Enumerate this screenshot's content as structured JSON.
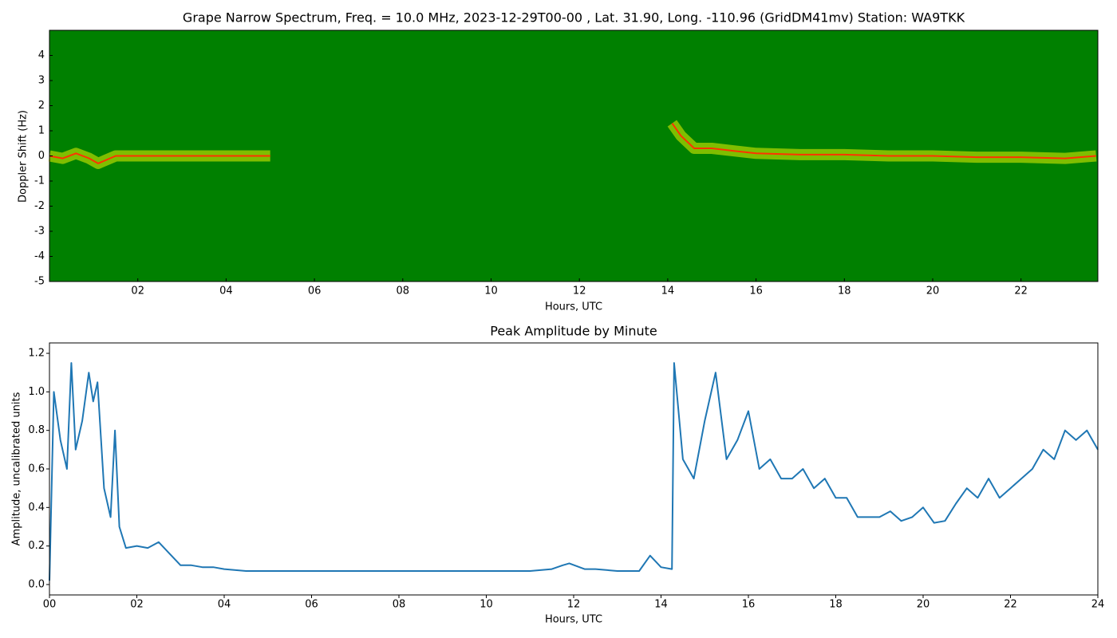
{
  "chart_data": [
    {
      "type": "spectrogram",
      "title": "Grape Narrow Spectrum, Freq. = 10.0 MHz, 2023-12-29T00-00 , Lat.  31.90, Long. -110.96 (GridDM41mv) Station: WA9TKK",
      "xlabel": "Hours, UTC",
      "ylabel": "Doppler Shift (Hz)",
      "background_color": "#008000",
      "xlim": [
        0,
        23.74
      ],
      "ylim": [
        -5,
        5
      ],
      "xticks": [
        {
          "value": 2,
          "label": "02"
        },
        {
          "value": 4,
          "label": "04"
        },
        {
          "value": 6,
          "label": "06"
        },
        {
          "value": 8,
          "label": "08"
        },
        10,
        12,
        14,
        16,
        18,
        20,
        22
      ],
      "yticks": [
        -5,
        -4,
        -3,
        -2,
        -1,
        0,
        1,
        2,
        3,
        4
      ],
      "series": [
        {
          "color": "#ff3300",
          "x": [
            0,
            0.3,
            0.6,
            0.9,
            1.1,
            1.5,
            3,
            5,
            9,
            14.1,
            14.3,
            14.6,
            15,
            15.5,
            16,
            17,
            18,
            19,
            20,
            21,
            22,
            23,
            23.7
          ],
          "values": [
            0,
            -0.1,
            0.1,
            -0.1,
            -0.3,
            0,
            0,
            0,
            null,
            1.3,
            0.8,
            0.3,
            0.3,
            0.2,
            0.1,
            0.05,
            0.05,
            0,
            0,
            -0.05,
            -0.05,
            -0.1,
            0
          ]
        }
      ]
    },
    {
      "type": "line",
      "title": "Peak Amplitude by Minute",
      "xlabel": "Hours, UTC",
      "ylabel": "Amplitude, uncalibrated units",
      "xlim": [
        0,
        24
      ],
      "ylim": [
        -0.054,
        1.254
      ],
      "xticks": [
        {
          "value": 0,
          "label": "00"
        },
        {
          "value": 2,
          "label": "02"
        },
        {
          "value": 4,
          "label": "04"
        },
        {
          "value": 6,
          "label": "06"
        },
        {
          "value": 8,
          "label": "08"
        },
        10,
        12,
        14,
        16,
        18,
        20,
        22,
        24
      ],
      "yticks": [
        {
          "value": 0,
          "label": "0.0"
        },
        0.2,
        0.4,
        0.6,
        0.8,
        {
          "value": 1,
          "label": "1.0"
        },
        1.2
      ],
      "series": [
        {
          "color": "#1f77b4",
          "x": [
            0,
            0.1,
            0.25,
            0.4,
            0.5,
            0.6,
            0.75,
            0.9,
            1.0,
            1.1,
            1.25,
            1.4,
            1.5,
            1.6,
            1.75,
            2.0,
            2.25,
            2.5,
            2.75,
            3.0,
            3.25,
            3.5,
            3.75,
            4.0,
            4.5,
            5,
            5.5,
            6,
            6.5,
            7,
            7.5,
            8,
            8.5,
            9,
            9.5,
            10,
            10.5,
            11,
            11.5,
            11.75,
            11.9,
            12.25,
            12.5,
            13,
            13.5,
            13.75,
            14.0,
            14.25,
            14.3,
            14.5,
            14.75,
            15.0,
            15.25,
            15.5,
            15.75,
            16.0,
            16.25,
            16.5,
            16.75,
            17.0,
            17.25,
            17.5,
            17.75,
            18.0,
            18.25,
            18.5,
            18.75,
            19.0,
            19.25,
            19.5,
            19.75,
            20.0,
            20.25,
            20.5,
            20.75,
            21.0,
            21.25,
            21.5,
            21.75,
            22.0,
            22.25,
            22.5,
            22.75,
            23.0,
            23.25,
            23.5,
            23.75,
            24.0
          ],
          "values": [
            0.02,
            1.0,
            0.75,
            0.6,
            1.15,
            0.7,
            0.85,
            1.1,
            0.95,
            1.05,
            0.5,
            0.35,
            0.8,
            0.3,
            0.19,
            0.2,
            0.19,
            0.22,
            0.16,
            0.1,
            0.1,
            0.09,
            0.09,
            0.08,
            0.07,
            0.07,
            0.07,
            0.07,
            0.07,
            0.07,
            0.07,
            0.07,
            0.07,
            0.07,
            0.07,
            0.07,
            0.07,
            0.07,
            0.08,
            0.1,
            0.11,
            0.08,
            0.08,
            0.07,
            0.07,
            0.15,
            0.09,
            0.08,
            1.15,
            0.65,
            0.55,
            0.85,
            1.1,
            0.65,
            0.75,
            0.9,
            0.6,
            0.65,
            0.55,
            0.55,
            0.6,
            0.5,
            0.55,
            0.45,
            0.45,
            0.35,
            0.35,
            0.35,
            0.38,
            0.33,
            0.35,
            0.4,
            0.32,
            0.33,
            0.42,
            0.5,
            0.45,
            0.55,
            0.45,
            0.5,
            0.55,
            0.6,
            0.7,
            0.65,
            0.8,
            0.75,
            0.8,
            0.7
          ]
        }
      ]
    }
  ]
}
